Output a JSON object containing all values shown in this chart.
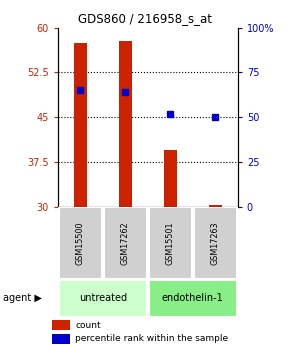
{
  "title": "GDS860 / 216958_s_at",
  "samples": [
    "GSM15500",
    "GSM17262",
    "GSM15501",
    "GSM17263"
  ],
  "groups": [
    "untreated",
    "untreated",
    "endothelin-1",
    "endothelin-1"
  ],
  "bar_values": [
    57.5,
    57.8,
    39.5,
    30.3
  ],
  "bar_base": 30,
  "bar_color": "#cc2200",
  "percentile_color": "#0000cc",
  "bar_width": 0.3,
  "ylim_left": [
    30,
    60
  ],
  "ylim_right": [
    0,
    100
  ],
  "yticks_left": [
    30,
    37.5,
    45,
    52.5,
    60
  ],
  "yticks_right": [
    0,
    25,
    50,
    75,
    100
  ],
  "ytick_labels_left": [
    "30",
    "37.5",
    "45",
    "52.5",
    "60"
  ],
  "ytick_labels_right": [
    "0",
    "25",
    "50",
    "75",
    "100%"
  ],
  "hlines": [
    37.5,
    45,
    52.5
  ],
  "group_colors_light": "#ccffcc",
  "group_colors_medium": "#88dd88",
  "group_label": "agent",
  "legend_count_label": "count",
  "legend_percentile_label": "percentile rank within the sample",
  "left_tick_color": "#cc2200",
  "right_tick_color": "#0000cc",
  "pct_vals": [
    65,
    64,
    52,
    50
  ],
  "sample_bg_color": "#d0d0d0",
  "group_untreated_color": "#ccffcc",
  "group_endothelin_color": "#88ee88"
}
